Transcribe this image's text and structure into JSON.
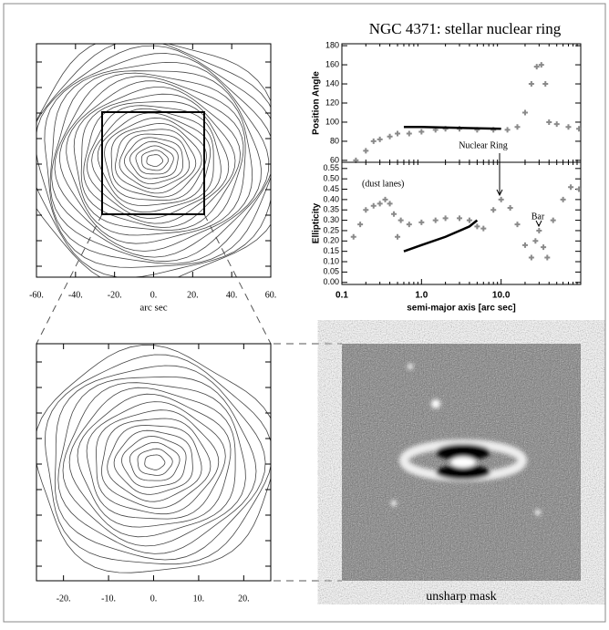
{
  "title": "NGC 4371: stellar nuclear ring",
  "chart_data": [
    {
      "type": "contour",
      "xlabel": "arc sec",
      "xlim": [
        -60,
        60
      ],
      "xticks": [
        {
          "value": -60,
          "label": "-60."
        },
        {
          "value": -40,
          "label": "-40."
        },
        {
          "value": -20,
          "label": "-20."
        },
        {
          "value": 0,
          "label": "0."
        },
        {
          "value": 20,
          "label": "20."
        },
        {
          "value": 40,
          "label": "40."
        },
        {
          "value": 60,
          "label": "60."
        }
      ]
    },
    {
      "type": "scatter",
      "ylabel": "Position Angle",
      "xscale": "log",
      "xlim": [
        0.1,
        100
      ],
      "ylim": [
        58,
        182
      ],
      "yticks": [
        60,
        80,
        100,
        120,
        140,
        160,
        180
      ],
      "series": [
        {
          "marker": "cross",
          "color": "#8a8a8a",
          "x": [
            0.15,
            0.2,
            0.25,
            0.3,
            0.4,
            0.5,
            0.7,
            1,
            1.5,
            2,
            3,
            5,
            8,
            12,
            16,
            20,
            24,
            28,
            32,
            36,
            40,
            50,
            70,
            95
          ],
          "values": [
            60,
            70,
            80,
            82,
            85,
            88,
            88,
            90,
            92,
            93,
            93,
            92,
            92,
            92,
            95,
            110,
            140,
            158,
            160,
            140,
            100,
            98,
            95,
            93
          ]
        },
        {
          "marker": "line",
          "color": "#000000",
          "x": [
            0.6,
            1,
            3,
            10
          ],
          "values": [
            95,
            95,
            94,
            93
          ]
        }
      ]
    },
    {
      "type": "scatter",
      "ylabel": "Ellipticity",
      "xlabel": "semi-major axis [arc sec]",
      "xscale": "log",
      "xlim": [
        0.1,
        100
      ],
      "ylim": [
        -0.01,
        0.58
      ],
      "annotations": [
        "(dust lanes)",
        "Nuclear Ring",
        "Bar"
      ],
      "xticks": [
        0.1,
        {
          "value": 1,
          "label": "1.0"
        },
        {
          "value": 10,
          "label": "10.0"
        }
      ],
      "yticks": [
        {
          "value": 0,
          "label": "0.00"
        },
        {
          "value": 0.05,
          "label": "0.05"
        },
        {
          "value": 0.1,
          "label": "0.10"
        },
        {
          "value": 0.15,
          "label": "0.15"
        },
        {
          "value": 0.2,
          "label": "0.20"
        },
        {
          "value": 0.25,
          "label": "0.25"
        },
        {
          "value": 0.3,
          "label": "0.30"
        },
        {
          "value": 0.35,
          "label": "0.35"
        },
        {
          "value": 0.4,
          "label": "0.40"
        },
        {
          "value": 0.45,
          "label": "0.45"
        },
        {
          "value": 0.5,
          "label": "0.50"
        },
        {
          "value": 0.55,
          "label": "0.55"
        }
      ],
      "series": [
        {
          "marker": "cross",
          "color": "#8a8a8a",
          "x": [
            0.14,
            0.17,
            0.2,
            0.25,
            0.3,
            0.35,
            0.4,
            0.45,
            0.5,
            0.55,
            0.7,
            1,
            1.5,
            2,
            3,
            4,
            5,
            6,
            8,
            10,
            13,
            16,
            20,
            24,
            27,
            30,
            34,
            38,
            45,
            60,
            75,
            95
          ],
          "values": [
            0.22,
            0.28,
            0.35,
            0.37,
            0.38,
            0.4,
            0.38,
            0.33,
            0.22,
            0.3,
            0.28,
            0.29,
            0.3,
            0.31,
            0.31,
            0.3,
            0.27,
            0.26,
            0.35,
            0.4,
            0.36,
            0.28,
            0.18,
            0.12,
            0.2,
            0.25,
            0.17,
            0.12,
            0.3,
            0.4,
            0.46,
            0.45
          ]
        },
        {
          "marker": "line",
          "color": "#000000",
          "x": [
            0.6,
            1,
            2,
            4,
            5
          ],
          "values": [
            0.15,
            0.18,
            0.22,
            0.27,
            0.3
          ]
        }
      ]
    },
    {
      "type": "contour",
      "xlim": [
        -26,
        26
      ],
      "xticks": [
        {
          "value": -20,
          "label": "-20."
        },
        {
          "value": -10,
          "label": "-10."
        },
        {
          "value": 0,
          "label": "0."
        },
        {
          "value": 10,
          "label": "10."
        },
        {
          "value": 20,
          "label": "20."
        }
      ]
    },
    {
      "type": "image",
      "caption": "unsharp mask"
    }
  ]
}
